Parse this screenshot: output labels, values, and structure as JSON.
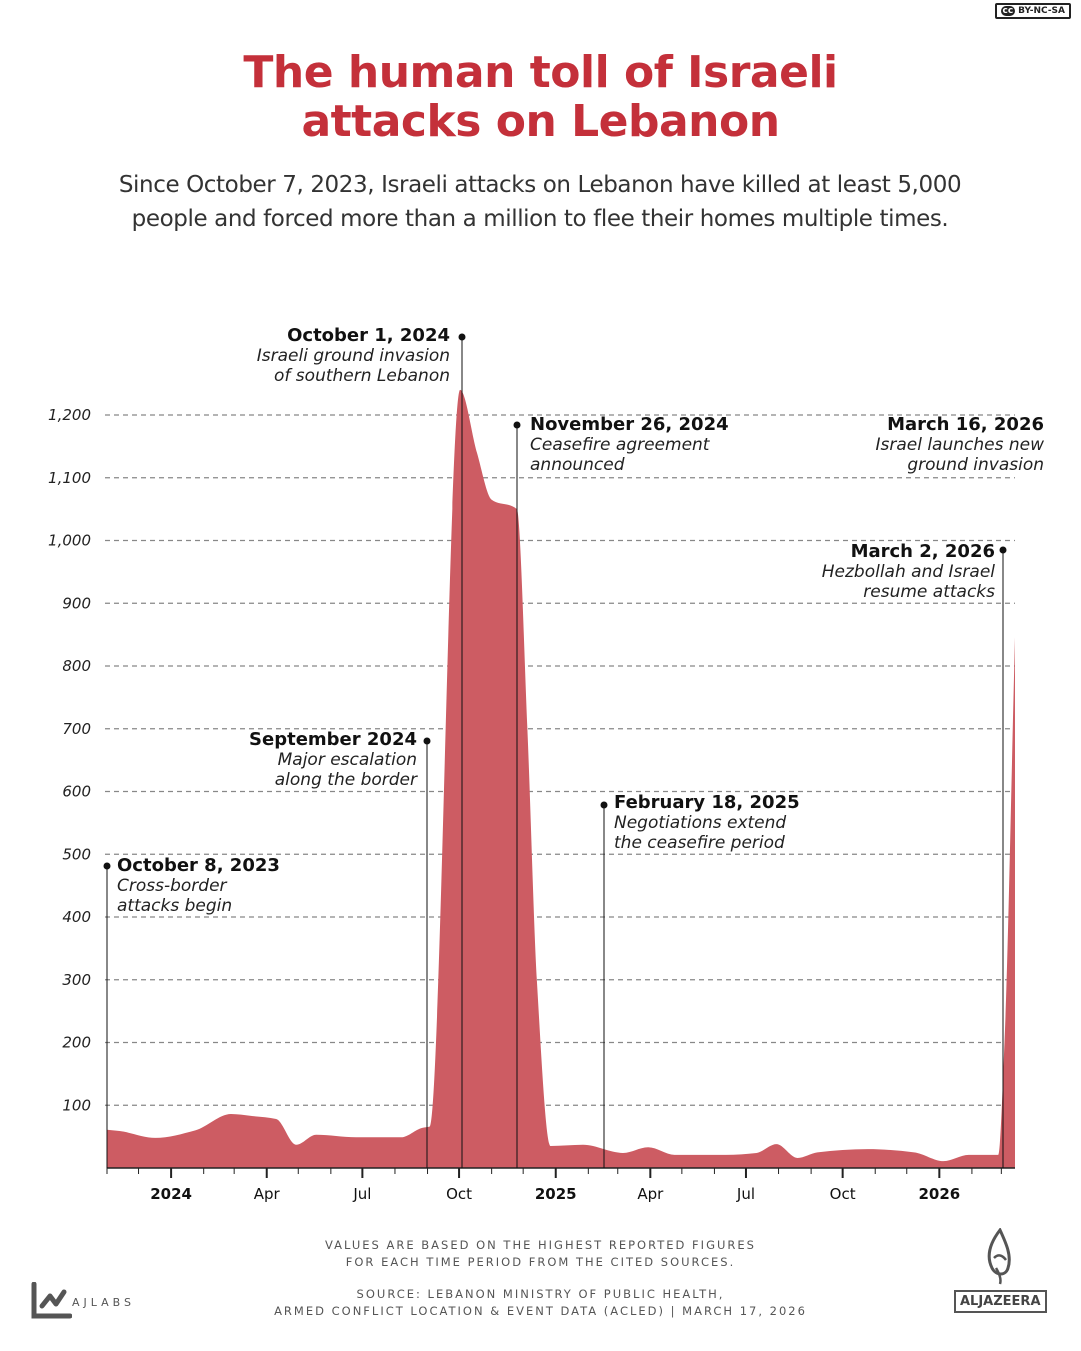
{
  "license_badge": "BY-NC-SA",
  "license_icon": "cc",
  "title_line1": "The human toll of Israeli",
  "title_line2": "attacks on Lebanon",
  "subtitle_line1": "Since October 7, 2023, Israeli attacks on Lebanon have killed at least 5,000",
  "subtitle_line2": "people and forced more than a million to flee their homes multiple times.",
  "colors": {
    "title": "#c4303a",
    "area": "#cd5c63"
  },
  "chart_data": {
    "type": "area",
    "x_domain": [
      "2023-11-01",
      "2026-03-14"
    ],
    "ylim": [
      0,
      1200
    ],
    "grid": true,
    "y_ticks": [
      100,
      200,
      300,
      400,
      500,
      600,
      700,
      800,
      900,
      1000,
      1100,
      1200
    ],
    "y_tick_labels": [
      "100",
      "200",
      "300",
      "400",
      "500",
      "600",
      "700",
      "800",
      "900",
      "1,000",
      "1,100",
      "1,200"
    ],
    "x_ticks": [
      {
        "date": "2024-01-01",
        "label": "2024",
        "bold": true
      },
      {
        "date": "2024-04-01",
        "label": "Apr",
        "bold": false
      },
      {
        "date": "2024-07-01",
        "label": "Jul",
        "bold": false
      },
      {
        "date": "2024-10-01",
        "label": "Oct",
        "bold": false
      },
      {
        "date": "2025-01-01",
        "label": "2025",
        "bold": true
      },
      {
        "date": "2025-04-01",
        "label": "Apr",
        "bold": false
      },
      {
        "date": "2025-07-01",
        "label": "Jul",
        "bold": false
      },
      {
        "date": "2025-10-01",
        "label": "Oct",
        "bold": false
      },
      {
        "date": "2026-01-01",
        "label": "2026",
        "bold": true
      }
    ],
    "points": [
      [
        "2023-11-01",
        61
      ],
      [
        "2023-11-13",
        59
      ],
      [
        "2023-12-17",
        48
      ],
      [
        "2024-01-24",
        60
      ],
      [
        "2024-02-27",
        86
      ],
      [
        "2024-03-17",
        83
      ],
      [
        "2024-04-10",
        78
      ],
      [
        "2024-04-29",
        37
      ],
      [
        "2024-05-18",
        53
      ],
      [
        "2024-06-25",
        49
      ],
      [
        "2024-08-07",
        49
      ],
      [
        "2024-08-27",
        64
      ],
      [
        "2024-09-03",
        66
      ],
      [
        "2024-10-02",
        1240
      ],
      [
        "2024-10-18",
        1140
      ],
      [
        "2024-11-01",
        1065
      ],
      [
        "2024-11-25",
        1050
      ],
      [
        "2024-12-05",
        700
      ],
      [
        "2024-12-14",
        300
      ],
      [
        "2024-12-27",
        35
      ],
      [
        "2025-01-27",
        37
      ],
      [
        "2025-03-06",
        24
      ],
      [
        "2025-03-30",
        33
      ],
      [
        "2025-04-24",
        21
      ],
      [
        "2025-06-12",
        21
      ],
      [
        "2025-07-11",
        24
      ],
      [
        "2025-07-30",
        38
      ],
      [
        "2025-08-19",
        16
      ],
      [
        "2025-09-07",
        25
      ],
      [
        "2025-10-25",
        30
      ],
      [
        "2025-12-08",
        25
      ],
      [
        "2026-01-05",
        11
      ],
      [
        "2026-01-29",
        21
      ],
      [
        "2026-02-26",
        21
      ],
      [
        "2026-03-04",
        200
      ],
      [
        "2026-03-14",
        846
      ]
    ],
    "annotations": [
      {
        "date": "October 8, 2023",
        "text1": "Cross-border",
        "text2": "attacks begin"
      },
      {
        "date": "September 2024",
        "text1": "Major escalation",
        "text2": "along the border"
      },
      {
        "date": "October 1, 2024",
        "text1": "Israeli ground invasion",
        "text2": "of southern Lebanon"
      },
      {
        "date": "November 26, 2024",
        "text1": "Ceasefire agreement",
        "text2": "announced"
      },
      {
        "date": "February 18, 2025",
        "text1": "Negotiations extend",
        "text2": "the ceasefire period"
      },
      {
        "date": "March 2, 2026",
        "text1": "Hezbollah and Israel",
        "text2": "resume attacks"
      },
      {
        "date": "March 16, 2026",
        "text1": "Israel launches new",
        "text2": "ground invasion"
      }
    ]
  },
  "footer": {
    "note1": "VALUES ARE BASED ON THE HIGHEST REPORTED FIGURES",
    "note2": "FOR EACH TIME PERIOD FROM THE CITED SOURCES.",
    "source1": "SOURCE:  LEBANON MINISTRY OF PUBLIC HEALTH,",
    "source2": "ARMED CONFLICT LOCATION & EVENT DATA (ACLED)  |   MARCH 17, 2026",
    "ajlabs": "AJLABS",
    "aljazeera": "ALJAZEERA"
  }
}
